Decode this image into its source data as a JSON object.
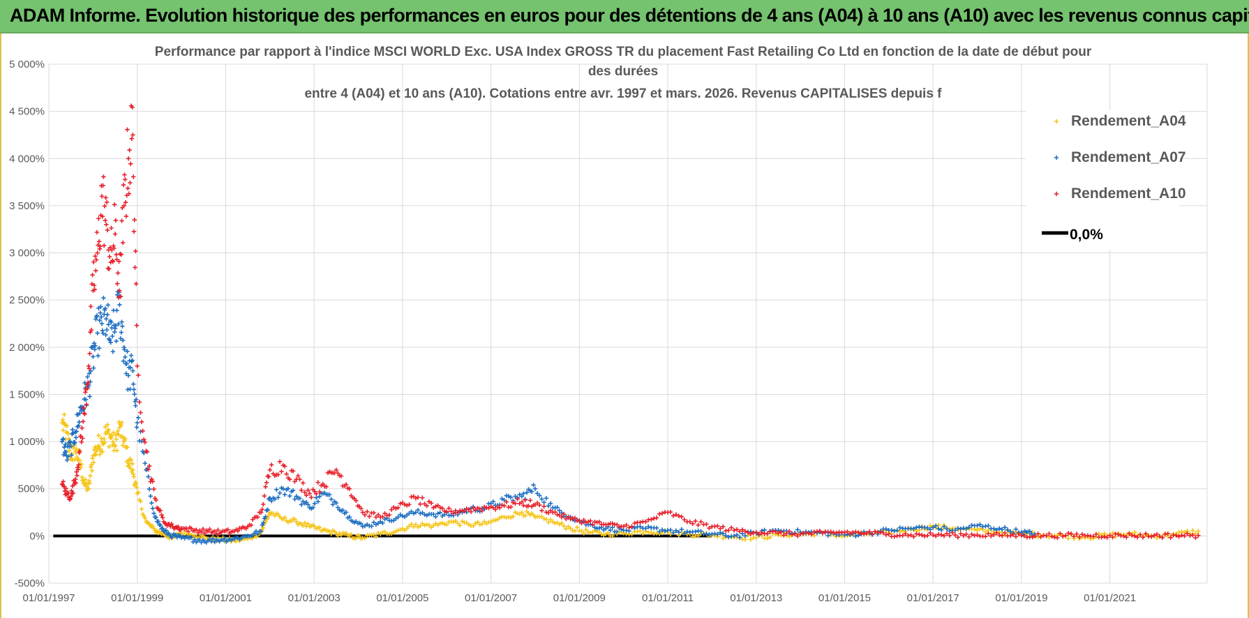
{
  "header": {
    "title": "ADAM Informe. Evolution historique des performances en euros pour des détentions de 4 ans (A04) à 10 ans (A10) avec les revenus connus capitalisés",
    "bg_color": "#75c26f"
  },
  "chart_data": {
    "type": "scatter",
    "title_lines": [
      "Performance par rapport à l'indice MSCI WORLD Exc. USA Index GROSS TR  du placement Fast Retailing Co Ltd en fonction de la date de début pour",
      "des durées",
      "entre 4 (A04) et 10 ans (A10). Cotations entre avr. 1997 et mars. 2026. Revenus CAPITALISES depuis f"
    ],
    "xlabel": "",
    "ylabel": "",
    "xlim": [
      1997.0,
      2023.2
    ],
    "ylim": [
      -500,
      5000
    ],
    "y_ticks": [
      5000,
      4500,
      4000,
      3500,
      3000,
      2500,
      2000,
      1500,
      1000,
      500,
      0,
      -500
    ],
    "y_tick_labels": [
      "5 000%",
      "4 500%",
      "4 000%",
      "3 500%",
      "3 000%",
      "2 500%",
      "2 000%",
      "1 500%",
      "1 000%",
      "500%",
      "0%",
      "-500%"
    ],
    "x_ticks": [
      1997,
      1999,
      2001,
      2003,
      2005,
      2007,
      2009,
      2011,
      2013,
      2015,
      2017,
      2019,
      2021
    ],
    "x_tick_labels": [
      "01/01/1997",
      "01/01/1999",
      "01/01/2001",
      "01/01/2003",
      "01/01/2005",
      "01/01/2007",
      "01/01/2009",
      "01/01/2011",
      "01/01/2013",
      "01/01/2015",
      "01/01/2017",
      "01/01/2019",
      "01/01/2021"
    ],
    "grid": true,
    "legend_position": "top-right",
    "series": [
      {
        "name": "Rendement_A04",
        "color": "#f5c518",
        "x": [
          1997.3,
          1997.4,
          1997.5,
          1997.6,
          1997.7,
          1997.8,
          1997.9,
          1998.0,
          1998.1,
          1998.2,
          1998.3,
          1998.4,
          1998.5,
          1998.6,
          1998.7,
          1998.8,
          1998.9,
          1999.0,
          1999.2,
          1999.4,
          1999.6,
          1999.8,
          2000.0,
          2000.3,
          2000.6,
          2000.9,
          2001.2,
          2001.5,
          2001.8,
          2002.0,
          2002.3,
          2002.6,
          2002.9,
          2003.2,
          2003.5,
          2003.8,
          2004.1,
          2004.5,
          2004.9,
          2005.3,
          2005.7,
          2006.1,
          2006.5,
          2006.9,
          2007.3,
          2007.7,
          2008.0,
          2008.4,
          2008.8,
          2009.2,
          2009.6,
          2010.0,
          2010.5,
          2011.0,
          2011.5,
          2012.0,
          2012.5,
          2013.0,
          2013.5,
          2014.0,
          2014.5,
          2015.0,
          2015.5,
          2016.0,
          2016.5,
          2017.0,
          2017.5,
          2018.0,
          2018.5,
          2019.0,
          2019.5,
          2020.0,
          2020.5,
          2021.0,
          2021.5,
          2022.0,
          2022.5,
          2023.0
        ],
        "values": [
          1200,
          1100,
          850,
          900,
          800,
          550,
          500,
          850,
          950,
          1000,
          1100,
          1050,
          950,
          1150,
          1000,
          800,
          700,
          450,
          150,
          60,
          20,
          -20,
          30,
          10,
          -30,
          -40,
          -50,
          -30,
          40,
          250,
          180,
          150,
          100,
          60,
          30,
          0,
          -20,
          20,
          60,
          120,
          110,
          150,
          120,
          130,
          200,
          250,
          200,
          150,
          80,
          40,
          20,
          30,
          50,
          40,
          20,
          10,
          -10,
          -20,
          10,
          20,
          30,
          0,
          20,
          40,
          70,
          100,
          80,
          60,
          40,
          20,
          10,
          0,
          -10,
          10,
          20,
          0,
          20,
          50
        ]
      },
      {
        "name": "Rendement_A07",
        "color": "#1f6fc1",
        "x": [
          1997.3,
          1997.4,
          1997.5,
          1997.6,
          1997.7,
          1997.8,
          1997.9,
          1998.0,
          1998.1,
          1998.2,
          1998.3,
          1998.4,
          1998.5,
          1998.6,
          1998.7,
          1998.8,
          1998.9,
          1999.0,
          1999.2,
          1999.4,
          1999.6,
          1999.8,
          2000.0,
          2000.3,
          2000.6,
          2000.9,
          2001.2,
          2001.5,
          2001.8,
          2002.0,
          2002.3,
          2002.6,
          2002.9,
          2003.2,
          2003.5,
          2003.8,
          2004.1,
          2004.5,
          2004.9,
          2005.3,
          2005.7,
          2006.1,
          2006.5,
          2006.9,
          2007.3,
          2007.7,
          2008.0,
          2008.4,
          2008.8,
          2009.2,
          2009.6,
          2010.0,
          2010.5,
          2011.0,
          2011.5,
          2012.0,
          2012.5,
          2013.0,
          2013.5,
          2014.0,
          2014.5,
          2015.0,
          2015.5,
          2016.0,
          2016.5,
          2017.0,
          2017.5,
          2018.0,
          2018.5,
          2019.0,
          2019.3
        ],
        "values": [
          1000,
          850,
          950,
          1100,
          1300,
          1450,
          1600,
          1900,
          2150,
          2250,
          2300,
          2050,
          2200,
          2450,
          2000,
          1700,
          1750,
          1200,
          700,
          200,
          50,
          0,
          -20,
          -40,
          -50,
          -40,
          -30,
          0,
          50,
          400,
          500,
          420,
          300,
          450,
          350,
          200,
          100,
          150,
          200,
          250,
          230,
          220,
          280,
          300,
          380,
          420,
          500,
          300,
          200,
          120,
          80,
          60,
          80,
          60,
          40,
          20,
          0,
          30,
          60,
          40,
          30,
          10,
          30,
          60,
          80,
          90,
          60,
          110,
          80,
          40,
          20
        ]
      },
      {
        "name": "Rendement_A10",
        "color": "#e8212b",
        "x": [
          1997.3,
          1997.4,
          1997.5,
          1997.6,
          1997.7,
          1997.8,
          1997.9,
          1998.0,
          1998.1,
          1998.2,
          1998.3,
          1998.4,
          1998.5,
          1998.6,
          1998.7,
          1998.8,
          1998.9,
          1999.0,
          1999.2,
          1999.4,
          1999.6,
          1999.8,
          2000.0,
          2000.3,
          2000.6,
          2000.9,
          2001.2,
          2001.5,
          2001.8,
          2002.0,
          2002.3,
          2002.6,
          2002.9,
          2003.2,
          2003.5,
          2003.8,
          2004.1,
          2004.5,
          2004.9,
          2005.3,
          2005.7,
          2006.1,
          2006.5,
          2006.9,
          2007.3,
          2007.7,
          2008.0,
          2008.4,
          2008.8,
          2009.2,
          2009.6,
          2010.0,
          2010.5,
          2011.0,
          2011.5,
          2012.0,
          2012.5,
          2013.0,
          2013.5,
          2014.0,
          2014.5,
          2015.0,
          2015.5,
          2016.0,
          2016.5,
          2017.0,
          2017.5,
          2018.0,
          2018.5,
          2019.0,
          2019.5,
          2020.0,
          2020.5,
          2021.0,
          2021.5,
          2022.0,
          2022.5,
          2023.0
        ],
        "values": [
          550,
          450,
          420,
          600,
          900,
          1300,
          1800,
          2600,
          3000,
          3600,
          3300,
          2900,
          3200,
          2600,
          3500,
          4000,
          4250,
          1800,
          900,
          400,
          150,
          100,
          80,
          60,
          50,
          40,
          50,
          100,
          250,
          700,
          750,
          600,
          450,
          550,
          700,
          500,
          250,
          200,
          300,
          400,
          300,
          260,
          280,
          300,
          320,
          360,
          330,
          250,
          180,
          150,
          120,
          100,
          150,
          250,
          150,
          100,
          60,
          40,
          30,
          20,
          30,
          40,
          30,
          20,
          10,
          10,
          10,
          10,
          10,
          5,
          5,
          5,
          5,
          5,
          5,
          5,
          5,
          5
        ]
      }
    ],
    "reference_line": {
      "name": "0,0%",
      "value": 0,
      "color": "#000000"
    }
  }
}
